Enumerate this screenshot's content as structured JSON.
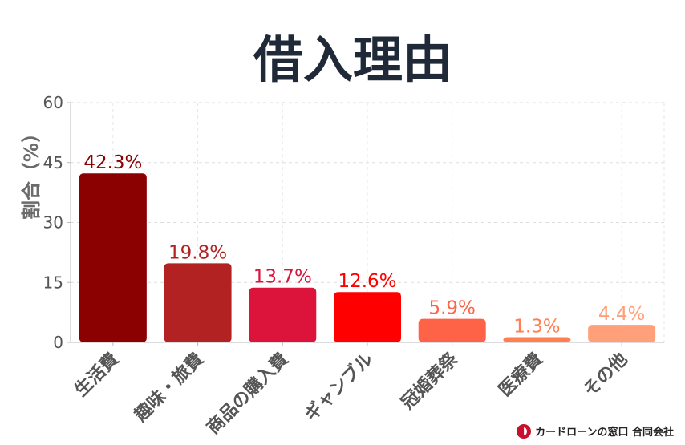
{
  "chart_data": {
    "type": "bar",
    "title": "借入理由",
    "ylabel": "割合（%）",
    "xlabel": "",
    "ylim": [
      0,
      60
    ],
    "yticks": [
      0,
      15,
      30,
      45,
      60
    ],
    "grid": true,
    "categories": [
      "生活費",
      "趣味・旅費",
      "商品の購入費",
      "ギャンブル",
      "冠婚葬祭",
      "医療費",
      "その他"
    ],
    "values": [
      42.3,
      19.8,
      13.7,
      12.6,
      5.9,
      1.3,
      4.4
    ],
    "data_labels": [
      "42.3%",
      "19.8%",
      "13.7%",
      "12.6%",
      "5.9%",
      "1.3%",
      "4.4%"
    ],
    "bar_colors": [
      "#8b0000",
      "#b22222",
      "#dc143c",
      "#ff0000",
      "#ff6347",
      "#ff7f50",
      "#ffa07a"
    ]
  },
  "footer": {
    "brand": "カードローンの窓口 合同会社"
  },
  "icons": {
    "logo": "brand-logo-icon"
  }
}
